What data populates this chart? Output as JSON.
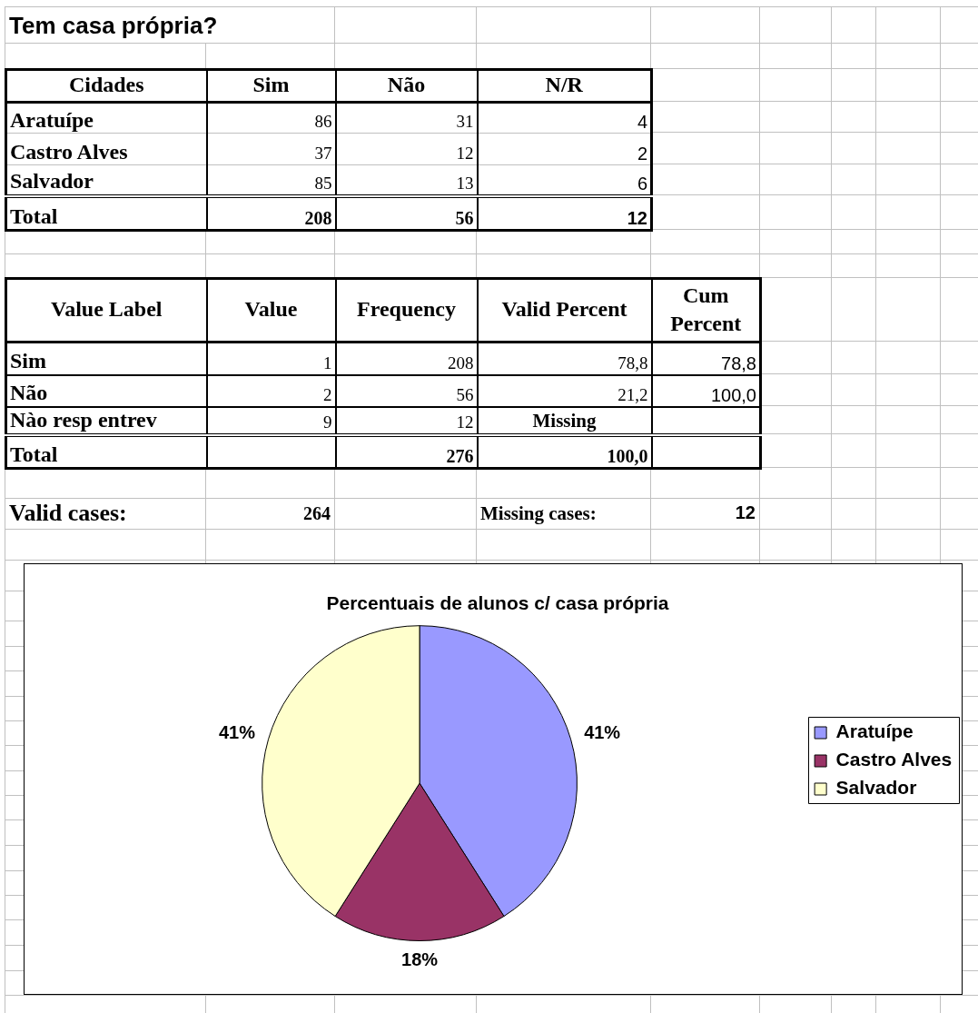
{
  "chart_data": [
    {
      "type": "other",
      "title": "Tem casa própria?",
      "ylabel": "Cidades",
      "categories": [
        "Sim",
        "Não",
        "N/R"
      ],
      "y_categories": [
        "Aratuípe",
        "Castro Alves",
        "Salvador",
        "Total"
      ],
      "cell_labels": [
        [
          "86",
          "31",
          "4"
        ],
        [
          "37",
          "12",
          "2"
        ],
        [
          "85",
          "13",
          "6"
        ],
        [
          "208",
          "56",
          "12"
        ]
      ]
    },
    {
      "type": "other",
      "ylabel": "Value Label",
      "categories": [
        "Value",
        "Frequency",
        "Valid Percent",
        "Cum Percent"
      ],
      "y_categories": [
        "Sim",
        "Não",
        "Nào resp entrev",
        "Total"
      ],
      "cell_labels": [
        [
          "1",
          "208",
          "78,8",
          "78,8"
        ],
        [
          "2",
          "56",
          "21,2",
          "100,0"
        ],
        [
          "9",
          "12",
          "Missing",
          null
        ],
        [
          null,
          "276",
          "100,0",
          null
        ]
      ],
      "annotations": [
        "Valid cases:",
        "264",
        "Missing cases:",
        "12"
      ]
    },
    {
      "type": "pie",
      "title": "Percentuais de alunos c/ casa própria",
      "categories": [
        "Aratuípe",
        "Castro Alves",
        "Salvador"
      ],
      "values": [
        41,
        18,
        41
      ],
      "colors": [
        "#9999ff",
        "#993366",
        "#ffffcc"
      ],
      "value_labels": [
        "41%",
        "18%",
        "41%"
      ],
      "legend": "right"
    }
  ]
}
